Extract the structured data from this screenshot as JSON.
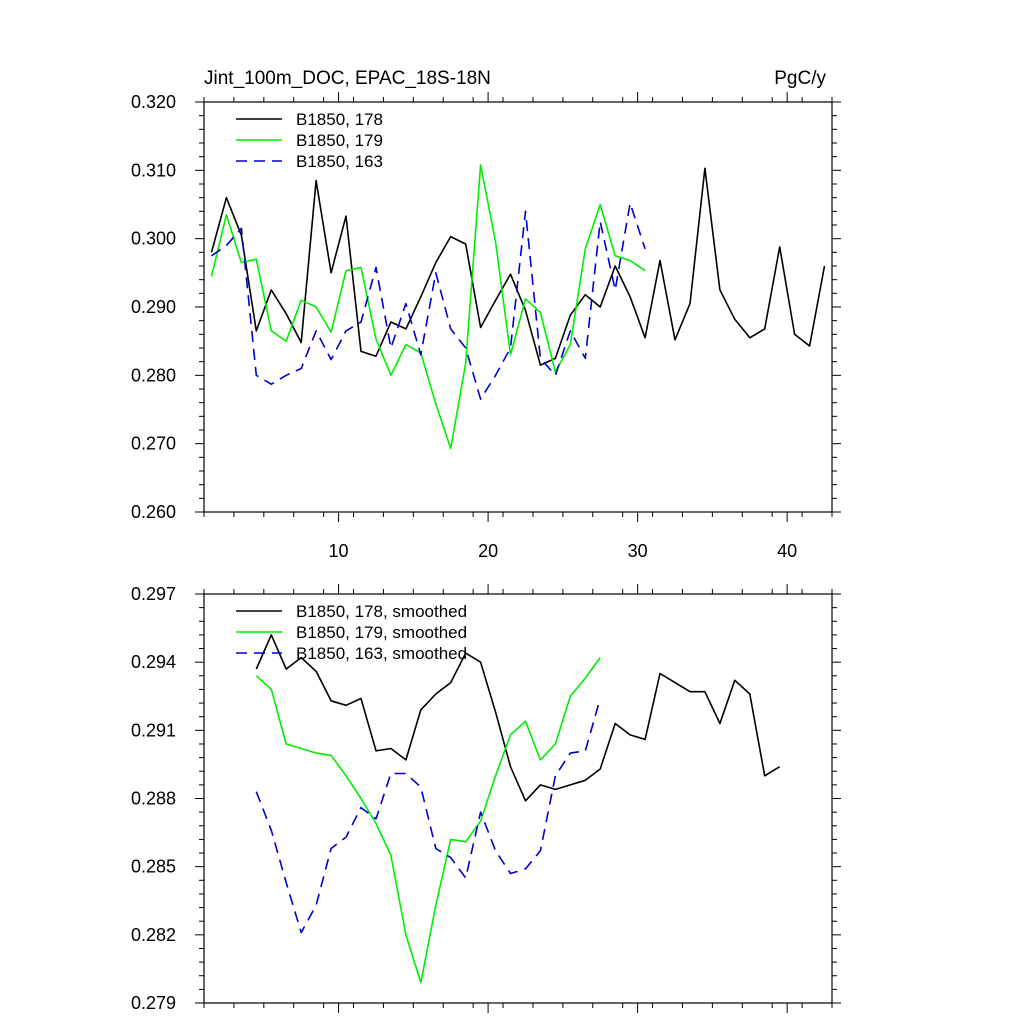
{
  "chart_data": [
    {
      "type": "line",
      "title": "Jint_100m_DOC, EPAC_18S-18N",
      "units": "PgC/y",
      "xlim": [
        1,
        43
      ],
      "ylim": [
        0.26,
        0.32
      ],
      "x_ticks": [
        10,
        20,
        30,
        40
      ],
      "x_tick_labels": [
        "10",
        "20",
        "30",
        "40"
      ],
      "y_ticks": [
        0.26,
        0.27,
        0.28,
        0.29,
        0.3,
        0.31,
        0.32
      ],
      "y_tick_labels": [
        "0.260",
        "0.270",
        "0.280",
        "0.290",
        "0.300",
        "0.310",
        "0.320"
      ],
      "legend_position": "top-left",
      "series": [
        {
          "name": "B1850, 178",
          "color": "#000000",
          "dash": "solid",
          "x_start": 1.5,
          "values": [
            0.298,
            0.306,
            0.3005,
            0.2865,
            0.2925,
            0.289,
            0.2848,
            0.3085,
            0.295,
            0.3033,
            0.2835,
            0.2828,
            0.2878,
            0.2868,
            0.2915,
            0.2965,
            0.3003,
            0.2992,
            0.287,
            0.291,
            0.2948,
            0.2895,
            0.2815,
            0.2825,
            0.2888,
            0.2918,
            0.29,
            0.296,
            0.2915,
            0.2855,
            0.2968,
            0.2852,
            0.2905,
            0.3103,
            0.2925,
            0.2882,
            0.2855,
            0.2868,
            0.2988,
            0.286,
            0.2843,
            0.296
          ]
        },
        {
          "name": "B1850, 179",
          "color": "#00ee00",
          "dash": "solid",
          "x_start": 1.5,
          "values": [
            0.2945,
            0.3035,
            0.2965,
            0.297,
            0.2865,
            0.285,
            0.291,
            0.29,
            0.2863,
            0.2953,
            0.2958,
            0.2853,
            0.28,
            0.2845,
            0.2833,
            0.2758,
            0.2693,
            0.2818,
            0.3108,
            0.2995,
            0.283,
            0.2912,
            0.2892,
            0.2805,
            0.2845,
            0.2985,
            0.305,
            0.2975,
            0.2968,
            0.2953
          ]
        },
        {
          "name": "B1850, 163",
          "color": "#0000cc",
          "dash": "dashed",
          "x_start": 1.5,
          "values": [
            0.2975,
            0.299,
            0.3015,
            0.28,
            0.2787,
            0.28,
            0.281,
            0.2865,
            0.2823,
            0.2865,
            0.2878,
            0.2958,
            0.284,
            0.2905,
            0.283,
            0.295,
            0.2868,
            0.284,
            0.2765,
            0.28,
            0.284,
            0.304,
            0.2825,
            0.28,
            0.2865,
            0.2825,
            0.3025,
            0.2925,
            0.3052,
            0.2985
          ]
        }
      ]
    },
    {
      "type": "line",
      "xlim": [
        1,
        43
      ],
      "ylim": [
        0.279,
        0.297
      ],
      "x_ticks": [
        10,
        20,
        30,
        40
      ],
      "x_tick_labels": [
        "",
        "",
        "",
        ""
      ],
      "y_ticks": [
        0.279,
        0.282,
        0.285,
        0.288,
        0.291,
        0.294,
        0.297
      ],
      "y_tick_labels": [
        "0.279",
        "0.282",
        "0.285",
        "0.288",
        "0.291",
        "0.294",
        "0.297"
      ],
      "legend_position": "top-left",
      "series": [
        {
          "name": "B1850, 178, smoothed",
          "color": "#000000",
          "dash": "solid",
          "x_start": 4.5,
          "values": [
            0.2937,
            0.2952,
            0.2937,
            0.2942,
            0.2936,
            0.2923,
            0.2921,
            0.2924,
            0.2901,
            0.2902,
            0.2897,
            0.2919,
            0.2926,
            0.2931,
            0.2944,
            0.294,
            0.2918,
            0.2894,
            0.2879,
            0.2886,
            0.2884,
            0.2886,
            0.2888,
            0.2893,
            0.2913,
            0.2908,
            0.2906,
            0.2935,
            0.2931,
            0.2927,
            0.2927,
            0.2913,
            0.2932,
            0.2926,
            0.289,
            0.2894
          ]
        },
        {
          "name": "B1850, 179, smoothed",
          "color": "#00ee00",
          "dash": "solid",
          "x_start": 4.5,
          "values": [
            0.2934,
            0.2928,
            0.2904,
            0.2902,
            0.29,
            0.2899,
            0.289,
            0.288,
            0.2869,
            0.2855,
            0.282,
            0.2799,
            0.2833,
            0.2862,
            0.2861,
            0.287,
            0.289,
            0.2908,
            0.2914,
            0.2897,
            0.2904,
            0.2925,
            0.2933,
            0.2942
          ]
        },
        {
          "name": "B1850, 163, smoothed",
          "color": "#0000cc",
          "dash": "dashed",
          "x_start": 4.5,
          "values": [
            0.2883,
            0.2866,
            0.2843,
            0.2821,
            0.2833,
            0.2858,
            0.2863,
            0.2876,
            0.2871,
            0.2891,
            0.2891,
            0.2885,
            0.2858,
            0.2854,
            0.2845,
            0.2874,
            0.2857,
            0.2847,
            0.2849,
            0.2857,
            0.289,
            0.29,
            0.2901,
            0.2924
          ]
        }
      ]
    }
  ]
}
